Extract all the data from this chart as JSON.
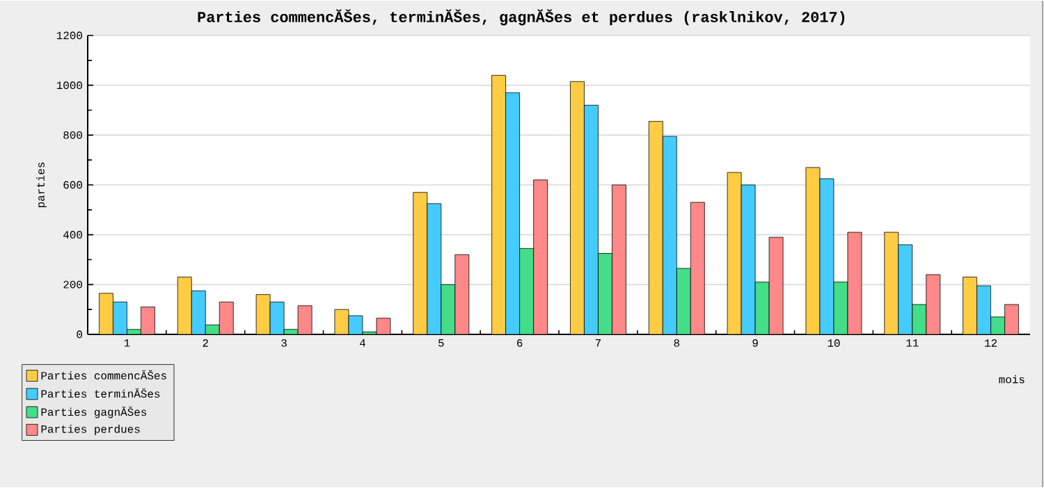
{
  "chart_data": {
    "type": "bar",
    "title": "Parties commencĂŠes, terminĂŠes, gagnĂŠes et perdues (rasklnikov, 2017)",
    "xlabel": "mois",
    "ylabel": "parties",
    "categories": [
      "1",
      "2",
      "3",
      "4",
      "5",
      "6",
      "7",
      "8",
      "9",
      "10",
      "11",
      "12"
    ],
    "series": [
      {
        "name": "Parties commencĂŠes",
        "color": "#ffcc44",
        "values": [
          165,
          230,
          160,
          100,
          570,
          1040,
          1015,
          855,
          650,
          670,
          410,
          230
        ]
      },
      {
        "name": "Parties terminĂŠes",
        "color": "#44ccff",
        "values": [
          130,
          175,
          130,
          75,
          525,
          970,
          920,
          795,
          600,
          625,
          360,
          195
        ]
      },
      {
        "name": "Parties gagnĂŠes",
        "color": "#44dd88",
        "values": [
          20,
          38,
          20,
          10,
          200,
          345,
          325,
          265,
          210,
          210,
          120,
          70
        ]
      },
      {
        "name": "Parties perdues",
        "color": "#ff8888",
        "values": [
          110,
          130,
          115,
          65,
          320,
          620,
          600,
          530,
          390,
          410,
          240,
          120
        ]
      }
    ],
    "ylim": [
      0,
      1200
    ],
    "yticks": [
      0,
      200,
      400,
      600,
      800,
      1000,
      1200
    ],
    "grid": "y",
    "legend": "bottom left"
  }
}
